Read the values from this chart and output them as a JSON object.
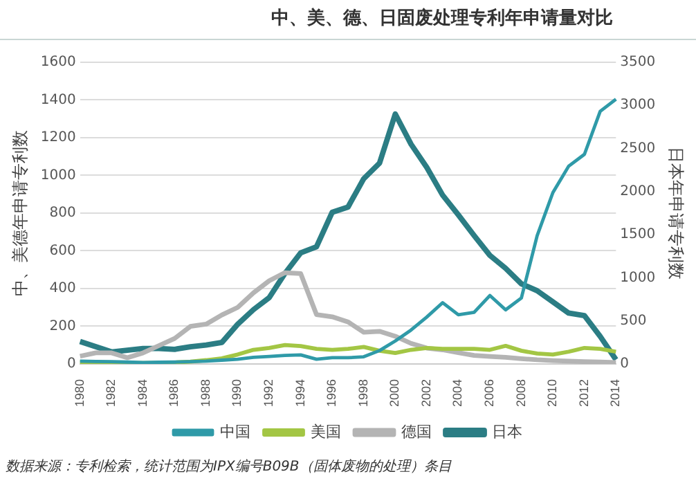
{
  "chart_data": {
    "type": "line",
    "title": "中、美、德、日固废处理专利年申请量对比",
    "ylabel": "中、美德年申请专利数",
    "y2label": "日本年申请专利数",
    "categories": [
      "1980",
      null,
      "1982",
      null,
      "1984",
      null,
      "1986",
      null,
      "1988",
      null,
      "1990",
      null,
      "1992",
      null,
      "1994",
      null,
      "1996",
      null,
      "1998",
      null,
      "2000",
      null,
      "2002",
      null,
      "2004",
      null,
      "2006",
      null,
      "2008",
      null,
      "2010",
      null,
      "2012",
      null,
      "2014"
    ],
    "series": [
      {
        "name": "中国",
        "color": "#2f9aa8",
        "values": [
          15,
          13,
          12,
          10,
          8,
          9,
          10,
          12,
          15,
          20,
          25,
          35,
          40,
          45,
          48,
          25,
          33,
          33,
          38,
          71,
          122,
          180,
          249,
          325,
          261,
          274,
          363,
          287,
          350,
          680,
          909,
          1049,
          1112,
          1340,
          1404
        ]
      },
      {
        "name": "美国",
        "color": "#a3c644",
        "values": [
          10,
          9,
          8,
          6,
          5,
          6,
          8,
          12,
          20,
          30,
          50,
          75,
          85,
          100,
          95,
          80,
          75,
          80,
          90,
          70,
          58,
          75,
          85,
          80,
          80,
          80,
          75,
          96,
          70,
          55,
          50,
          65,
          85,
          80,
          65
        ]
      },
      {
        "name": "德国",
        "color": "#b4b4b4",
        "values": [
          41,
          59,
          59,
          33,
          59,
          97,
          135,
          199,
          211,
          260,
          300,
          377,
          441,
          484,
          479,
          262,
          250,
          223,
          168,
          173,
          147,
          109,
          84,
          75,
          60,
          45,
          40,
          35,
          28,
          22,
          18,
          15,
          12,
          10,
          8
        ]
      },
      {
        "name": "日本",
        "color": "#2b7d84",
        "axis": "y2",
        "values": [
          260,
          200,
          140,
          160,
          180,
          180,
          170,
          200,
          220,
          250,
          460,
          630,
          770,
          1050,
          1290,
          1360,
          1760,
          1820,
          2150,
          2330,
          2900,
          2550,
          2280,
          1960,
          1730,
          1490,
          1260,
          1110,
          930,
          850,
          720,
          590,
          560,
          320,
          50
        ]
      }
    ],
    "ylim": [
      0,
      1600
    ],
    "yticks": [
      0,
      200,
      400,
      600,
      800,
      1000,
      1200,
      1400,
      1600
    ],
    "y2lim": [
      0,
      3500
    ],
    "y2ticks": [
      0,
      500,
      1000,
      1500,
      2000,
      2500,
      3000,
      3500
    ],
    "grid": "y",
    "legend": "bottom",
    "marker": "none",
    "line_style": "solid",
    "annotations": [
      "数据来源：专利检索，统计范围为IPX编号B09B（固体废物的处理）条目"
    ]
  }
}
